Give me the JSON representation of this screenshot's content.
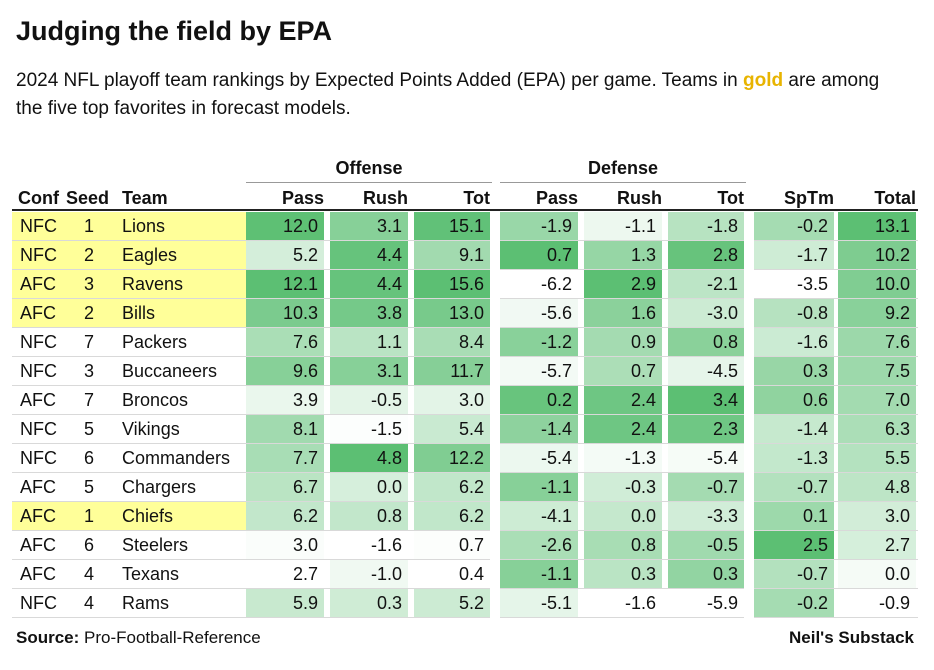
{
  "title": "Judging the field by EPA",
  "subtitle_pre": "2024 NFL playoff team rankings by Expected Points Added (EPA) per game. Teams in ",
  "subtitle_gold": "gold",
  "subtitle_post": " are among the five top favorites in forecast models.",
  "groups": {
    "offense": "Offense",
    "defense": "Defense"
  },
  "columns": [
    "Conf",
    "Seed",
    "Team",
    "Pass",
    "Rush",
    "Tot",
    "Pass",
    "Rush",
    "Tot",
    "SpTm",
    "Total"
  ],
  "footer": {
    "source_label": "Source:",
    "source_value": " Pro-Football-Reference",
    "credit": "Neil's Substack"
  },
  "colors": {
    "highlight": "#ffff99",
    "heat_low": "#ffffff",
    "heat_high": "#5cbf73"
  },
  "chart_data": {
    "type": "table",
    "title": "Judging the field by EPA",
    "rows": [
      {
        "conf": "NFC",
        "seed": "1",
        "team": "Lions",
        "favorite": true,
        "off_pass": "12.0",
        "off_rush": "3.1",
        "off_tot": "15.1",
        "def_pass": "-1.9",
        "def_rush": "-1.1",
        "def_tot": "-1.8",
        "sptm": "-0.2",
        "total": "13.1"
      },
      {
        "conf": "NFC",
        "seed": "2",
        "team": "Eagles",
        "favorite": true,
        "off_pass": "5.2",
        "off_rush": "4.4",
        "off_tot": "9.1",
        "def_pass": "0.7",
        "def_rush": "1.3",
        "def_tot": "2.8",
        "sptm": "-1.7",
        "total": "10.2"
      },
      {
        "conf": "AFC",
        "seed": "3",
        "team": "Ravens",
        "favorite": true,
        "off_pass": "12.1",
        "off_rush": "4.4",
        "off_tot": "15.6",
        "def_pass": "-6.2",
        "def_rush": "2.9",
        "def_tot": "-2.1",
        "sptm": "-3.5",
        "total": "10.0"
      },
      {
        "conf": "AFC",
        "seed": "2",
        "team": "Bills",
        "favorite": true,
        "off_pass": "10.3",
        "off_rush": "3.8",
        "off_tot": "13.0",
        "def_pass": "-5.6",
        "def_rush": "1.6",
        "def_tot": "-3.0",
        "sptm": "-0.8",
        "total": "9.2"
      },
      {
        "conf": "NFC",
        "seed": "7",
        "team": "Packers",
        "favorite": false,
        "off_pass": "7.6",
        "off_rush": "1.1",
        "off_tot": "8.4",
        "def_pass": "-1.2",
        "def_rush": "0.9",
        "def_tot": "0.8",
        "sptm": "-1.6",
        "total": "7.6"
      },
      {
        "conf": "NFC",
        "seed": "3",
        "team": "Buccaneers",
        "favorite": false,
        "off_pass": "9.6",
        "off_rush": "3.1",
        "off_tot": "11.7",
        "def_pass": "-5.7",
        "def_rush": "0.7",
        "def_tot": "-4.5",
        "sptm": "0.3",
        "total": "7.5"
      },
      {
        "conf": "AFC",
        "seed": "7",
        "team": "Broncos",
        "favorite": false,
        "off_pass": "3.9",
        "off_rush": "-0.5",
        "off_tot": "3.0",
        "def_pass": "0.2",
        "def_rush": "2.4",
        "def_tot": "3.4",
        "sptm": "0.6",
        "total": "7.0"
      },
      {
        "conf": "NFC",
        "seed": "5",
        "team": "Vikings",
        "favorite": false,
        "off_pass": "8.1",
        "off_rush": "-1.5",
        "off_tot": "5.4",
        "def_pass": "-1.4",
        "def_rush": "2.4",
        "def_tot": "2.3",
        "sptm": "-1.4",
        "total": "6.3"
      },
      {
        "conf": "NFC",
        "seed": "6",
        "team": "Commanders",
        "favorite": false,
        "off_pass": "7.7",
        "off_rush": "4.8",
        "off_tot": "12.2",
        "def_pass": "-5.4",
        "def_rush": "-1.3",
        "def_tot": "-5.4",
        "sptm": "-1.3",
        "total": "5.5"
      },
      {
        "conf": "AFC",
        "seed": "5",
        "team": "Chargers",
        "favorite": false,
        "off_pass": "6.7",
        "off_rush": "0.0",
        "off_tot": "6.2",
        "def_pass": "-1.1",
        "def_rush": "-0.3",
        "def_tot": "-0.7",
        "sptm": "-0.7",
        "total": "4.8"
      },
      {
        "conf": "AFC",
        "seed": "1",
        "team": "Chiefs",
        "favorite": true,
        "off_pass": "6.2",
        "off_rush": "0.8",
        "off_tot": "6.2",
        "def_pass": "-4.1",
        "def_rush": "0.0",
        "def_tot": "-3.3",
        "sptm": "0.1",
        "total": "3.0"
      },
      {
        "conf": "AFC",
        "seed": "6",
        "team": "Steelers",
        "favorite": false,
        "off_pass": "3.0",
        "off_rush": "-1.6",
        "off_tot": "0.7",
        "def_pass": "-2.6",
        "def_rush": "0.8",
        "def_tot": "-0.5",
        "sptm": "2.5",
        "total": "2.7"
      },
      {
        "conf": "AFC",
        "seed": "4",
        "team": "Texans",
        "favorite": false,
        "off_pass": "2.7",
        "off_rush": "-1.0",
        "off_tot": "0.4",
        "def_pass": "-1.1",
        "def_rush": "0.3",
        "def_tot": "0.3",
        "sptm": "-0.7",
        "total": "0.0"
      },
      {
        "conf": "NFC",
        "seed": "4",
        "team": "Rams",
        "favorite": false,
        "off_pass": "5.9",
        "off_rush": "0.3",
        "off_tot": "5.2",
        "def_pass": "-5.1",
        "def_rush": "-1.6",
        "def_tot": "-5.9",
        "sptm": "-0.2",
        "total": "-0.9"
      }
    ]
  }
}
